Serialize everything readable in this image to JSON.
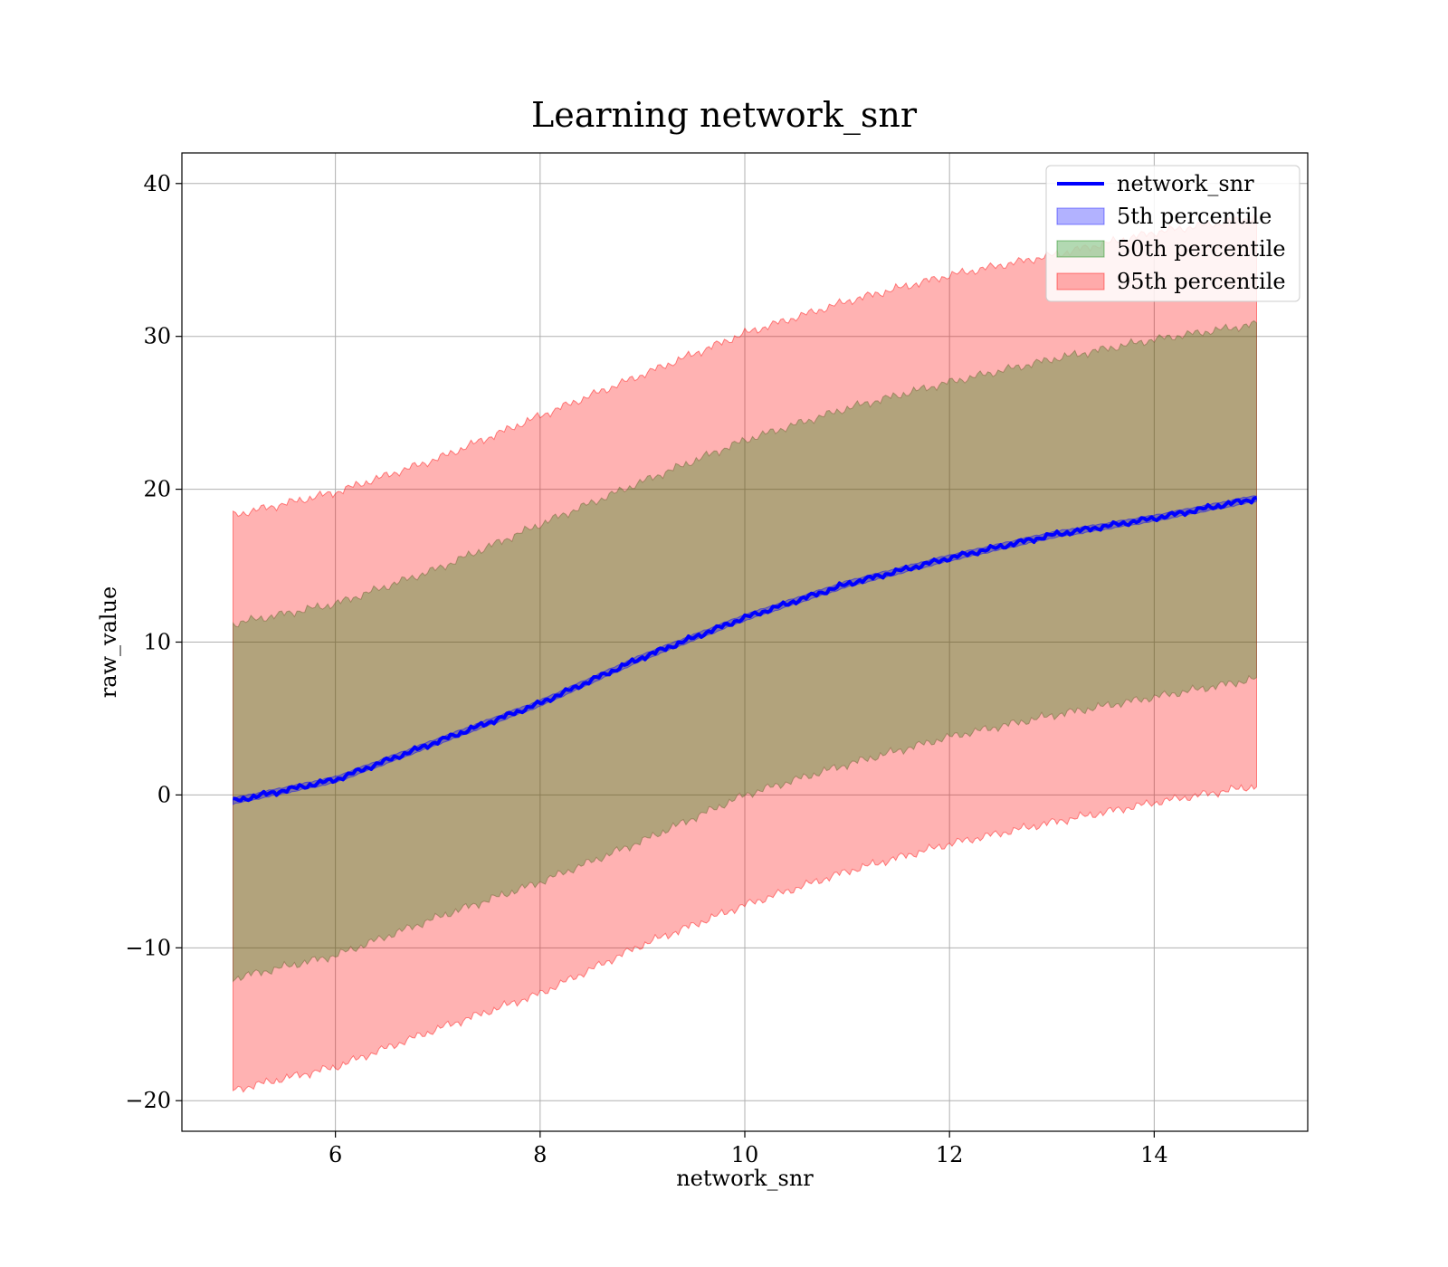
{
  "chart_data": {
    "type": "area",
    "title": "Learning network_snr",
    "xlabel": "network_snr",
    "ylabel": "raw_value",
    "xlim": [
      4.5,
      15.5
    ],
    "ylim": [
      -22,
      42
    ],
    "xticks": [
      6,
      8,
      10,
      12,
      14
    ],
    "yticks": [
      -20,
      -10,
      0,
      10,
      20,
      30,
      40
    ],
    "xtick_labels": [
      "6",
      "8",
      "10",
      "12",
      "14"
    ],
    "ytick_labels": [
      "−20",
      "−10",
      "0",
      "10",
      "20",
      "30",
      "40"
    ],
    "grid": true,
    "legend_position": "top-right",
    "x": [
      5,
      6,
      7,
      8,
      9,
      10,
      11,
      12,
      13,
      14,
      15
    ],
    "series": [
      {
        "name": "network_snr",
        "kind": "line",
        "color": "#0000ff",
        "values": [
          -0.4,
          1.0,
          3.5,
          6.0,
          9.0,
          11.6,
          13.8,
          15.5,
          17.0,
          18.1,
          19.4
        ]
      },
      {
        "name": "5th percentile",
        "kind": "band",
        "color": "#0000ff",
        "lower": [
          -0.6,
          0.8,
          3.3,
          5.8,
          8.8,
          11.4,
          13.6,
          15.3,
          16.8,
          17.9,
          19.2
        ],
        "upper": [
          -0.2,
          1.2,
          3.7,
          6.2,
          9.2,
          11.8,
          14.0,
          15.7,
          17.2,
          18.3,
          19.6
        ]
      },
      {
        "name": "50th percentile",
        "kind": "band",
        "color": "#008000",
        "lower": [
          -12.0,
          -10.5,
          -8.0,
          -5.7,
          -3.0,
          0.0,
          2.0,
          3.8,
          5.2,
          6.4,
          7.6
        ],
        "upper": [
          11.2,
          12.5,
          14.8,
          17.7,
          20.5,
          23.2,
          25.3,
          27.0,
          28.5,
          29.8,
          30.8
        ]
      },
      {
        "name": "95th percentile",
        "kind": "band",
        "color": "#ff0000",
        "lower": [
          -19.3,
          -17.8,
          -15.3,
          -13.0,
          -9.8,
          -7.2,
          -5.0,
          -3.2,
          -1.8,
          -0.5,
          0.6
        ],
        "upper": [
          18.3,
          19.8,
          22.0,
          24.8,
          27.5,
          30.2,
          32.3,
          34.0,
          35.3,
          36.8,
          37.8
        ]
      }
    ]
  }
}
